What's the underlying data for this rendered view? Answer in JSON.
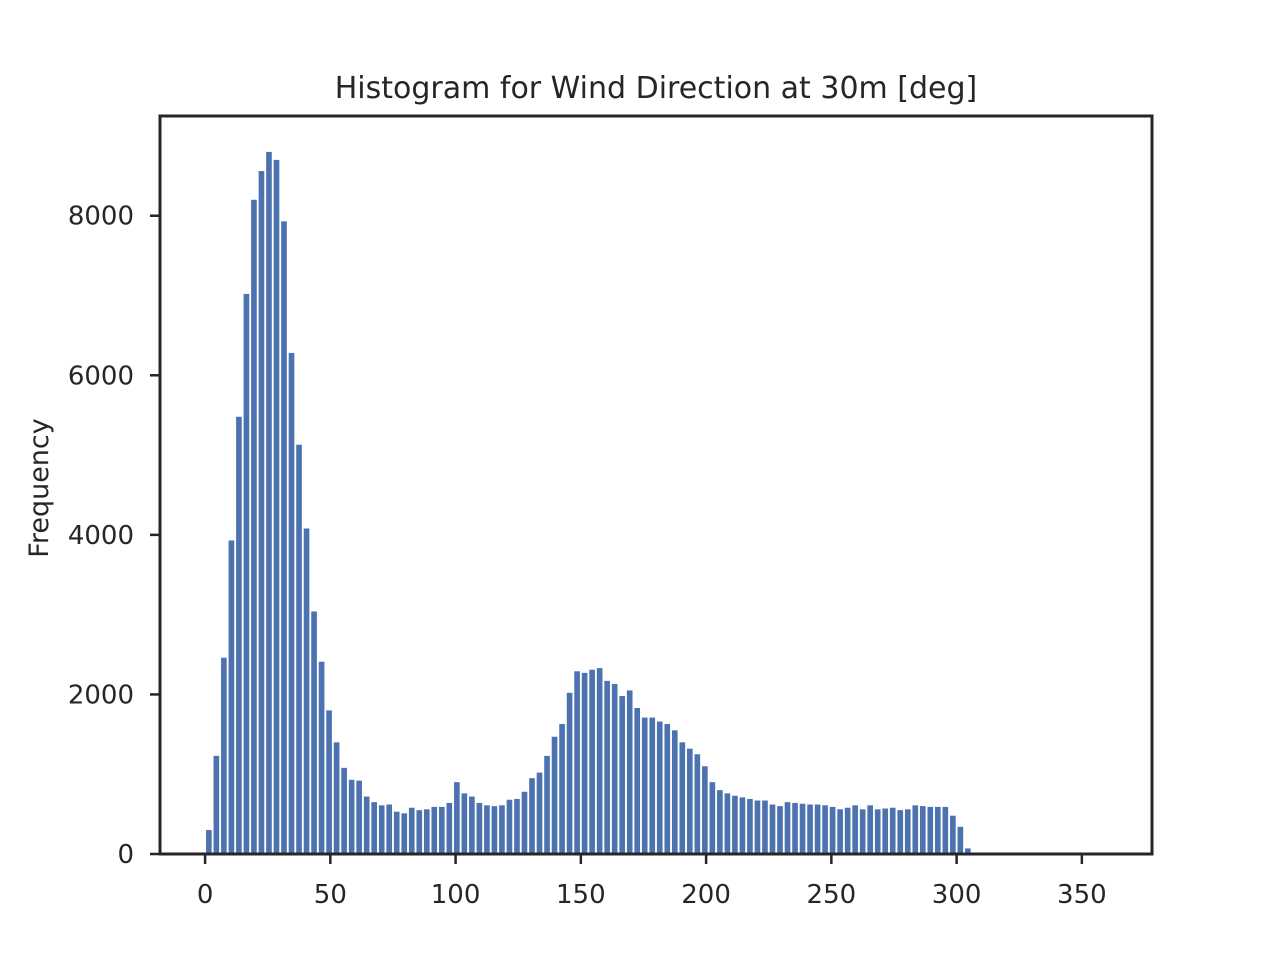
{
  "chart_data": {
    "type": "bar",
    "title": "Histogram for Wind Direction at 30m [deg]",
    "xlabel": "",
    "ylabel": "Frequency",
    "xlim": [
      -18,
      378
    ],
    "ylim": [
      0,
      9250
    ],
    "xticks": [
      0,
      50,
      100,
      150,
      200,
      250,
      300,
      350
    ],
    "yticks": [
      0,
      2000,
      4000,
      6000,
      8000
    ],
    "grid": false,
    "color": "#4c72b0",
    "bin_start": 0,
    "bin_width": 3,
    "bar_fill": 0.75,
    "values": [
      300,
      1230,
      2460,
      3930,
      5480,
      7020,
      8200,
      8560,
      8800,
      8700,
      7930,
      6280,
      5130,
      4080,
      3040,
      2410,
      1800,
      1400,
      1080,
      930,
      920,
      720,
      650,
      610,
      620,
      530,
      510,
      580,
      550,
      560,
      590,
      590,
      640,
      900,
      760,
      720,
      640,
      610,
      600,
      610,
      680,
      690,
      780,
      950,
      1020,
      1230,
      1470,
      1630,
      2020,
      2290,
      2270,
      2310,
      2330,
      2170,
      2130,
      1980,
      2050,
      1830,
      1710,
      1710,
      1660,
      1630,
      1550,
      1400,
      1320,
      1250,
      1100,
      900,
      800,
      760,
      730,
      710,
      690,
      670,
      670,
      620,
      600,
      650,
      640,
      630,
      620,
      620,
      610,
      590,
      560,
      580,
      610,
      560,
      610,
      560,
      570,
      580,
      550,
      560,
      610,
      600,
      590,
      590,
      590,
      480,
      340,
      70
    ]
  }
}
